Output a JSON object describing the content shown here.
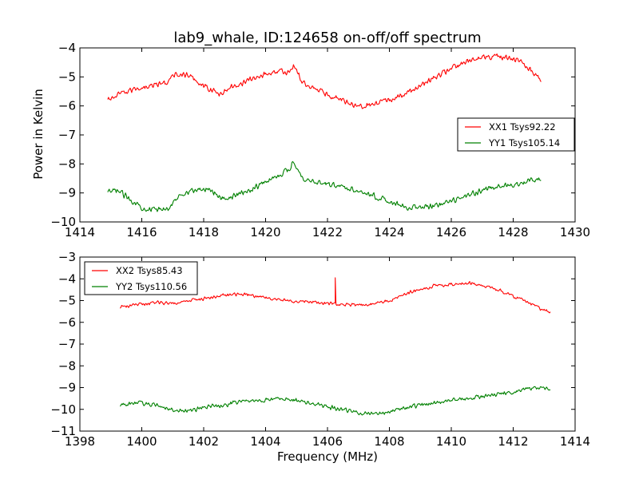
{
  "title": "lab9_whale, ID:124658 on-off/off spectrum",
  "ylabel": "Power in Kelvin",
  "xlabel": "Frequency (MHz)",
  "colors": {
    "xx": "#ff0000",
    "yy": "#008000"
  },
  "chart_data": [
    {
      "type": "line",
      "xlim": [
        1414,
        1430
      ],
      "ylim": [
        -10,
        -4
      ],
      "xticks": [
        1414,
        1416,
        1418,
        1420,
        1422,
        1424,
        1426,
        1428,
        1430
      ],
      "yticks": [
        -4,
        -5,
        -6,
        -7,
        -8,
        -9,
        -10
      ],
      "legend_position": "center-right",
      "series": [
        {
          "name": "XX1 Tsys92.22",
          "color": "#ff0000",
          "noise": 0.12,
          "x": [
            1414.9,
            1415.3,
            1415.8,
            1416.3,
            1416.8,
            1417.1,
            1417.5,
            1418.0,
            1418.5,
            1419.0,
            1419.5,
            1420.0,
            1420.4,
            1420.75,
            1420.9,
            1421.2,
            1421.6,
            1422.0,
            1422.5,
            1423.0,
            1423.5,
            1424.0,
            1424.5,
            1425.0,
            1425.5,
            1426.0,
            1426.5,
            1427.0,
            1427.5,
            1428.0,
            1428.3,
            1428.6,
            1428.9
          ],
          "y": [
            -5.8,
            -5.6,
            -5.4,
            -5.3,
            -5.2,
            -4.9,
            -4.95,
            -5.3,
            -5.6,
            -5.3,
            -5.1,
            -4.9,
            -4.8,
            -4.85,
            -4.6,
            -5.2,
            -5.4,
            -5.6,
            -5.8,
            -6.0,
            -5.95,
            -5.8,
            -5.6,
            -5.3,
            -5.0,
            -4.7,
            -4.5,
            -4.3,
            -4.3,
            -4.4,
            -4.5,
            -4.8,
            -5.1
          ]
        },
        {
          "name": "YY1 Tsys105.14",
          "color": "#008000",
          "noise": 0.12,
          "x": [
            1414.9,
            1415.2,
            1415.6,
            1416.0,
            1416.5,
            1416.9,
            1417.3,
            1417.8,
            1418.2,
            1418.6,
            1419.0,
            1419.5,
            1420.0,
            1420.4,
            1420.75,
            1420.9,
            1421.2,
            1421.6,
            1422.0,
            1422.5,
            1423.0,
            1423.5,
            1424.0,
            1424.5,
            1425.0,
            1425.5,
            1426.0,
            1426.5,
            1427.0,
            1427.5,
            1428.0,
            1428.5,
            1428.9
          ],
          "y": [
            -9.0,
            -8.9,
            -9.2,
            -9.5,
            -9.6,
            -9.5,
            -9.0,
            -8.9,
            -8.85,
            -9.2,
            -9.1,
            -8.9,
            -8.6,
            -8.4,
            -8.2,
            -7.9,
            -8.5,
            -8.6,
            -8.7,
            -8.8,
            -8.9,
            -9.1,
            -9.3,
            -9.5,
            -9.5,
            -9.45,
            -9.3,
            -9.1,
            -8.9,
            -8.8,
            -8.7,
            -8.6,
            -8.5
          ]
        }
      ]
    },
    {
      "type": "line",
      "xlim": [
        1398,
        1414
      ],
      "ylim": [
        -11,
        -3
      ],
      "xticks": [
        1398,
        1400,
        1402,
        1404,
        1406,
        1408,
        1410,
        1412,
        1414
      ],
      "yticks": [
        -3,
        -4,
        -5,
        -6,
        -7,
        -8,
        -9,
        -10,
        -11
      ],
      "legend_position": "top-left",
      "series": [
        {
          "name": "XX2 Tsys85.43",
          "color": "#ff0000",
          "noise": 0.1,
          "spike": {
            "x": 1406.25,
            "y": -3.95
          },
          "x": [
            1399.3,
            1399.8,
            1400.5,
            1401.2,
            1402.0,
            1402.7,
            1403.3,
            1404.0,
            1404.7,
            1405.3,
            1406.0,
            1406.7,
            1407.3,
            1408.0,
            1408.5,
            1409.0,
            1409.5,
            1410.0,
            1410.5,
            1411.0,
            1411.5,
            1412.0,
            1412.5,
            1412.9,
            1413.2
          ],
          "y": [
            -5.3,
            -5.2,
            -5.1,
            -5.1,
            -4.9,
            -4.75,
            -4.7,
            -4.85,
            -5.0,
            -5.05,
            -5.15,
            -5.2,
            -5.2,
            -5.0,
            -4.7,
            -4.5,
            -4.3,
            -4.25,
            -4.2,
            -4.3,
            -4.5,
            -4.8,
            -5.1,
            -5.4,
            -5.5
          ]
        },
        {
          "name": "YY2 Tsys110.56",
          "color": "#008000",
          "noise": 0.12,
          "x": [
            1399.3,
            1399.8,
            1400.5,
            1401.0,
            1401.5,
            1402.0,
            1402.7,
            1403.3,
            1404.0,
            1404.5,
            1405.0,
            1405.5,
            1406.0,
            1406.5,
            1407.0,
            1407.5,
            1408.0,
            1408.5,
            1409.0,
            1409.5,
            1410.0,
            1410.5,
            1411.0,
            1411.5,
            1412.0,
            1412.5,
            1413.0,
            1413.2
          ],
          "y": [
            -9.8,
            -9.7,
            -9.8,
            -10.0,
            -10.1,
            -9.9,
            -9.8,
            -9.6,
            -9.6,
            -9.5,
            -9.6,
            -9.7,
            -9.9,
            -10.0,
            -10.15,
            -10.2,
            -10.1,
            -9.95,
            -9.8,
            -9.7,
            -9.6,
            -9.5,
            -9.4,
            -9.3,
            -9.2,
            -9.05,
            -9.0,
            -9.1
          ]
        }
      ]
    }
  ]
}
